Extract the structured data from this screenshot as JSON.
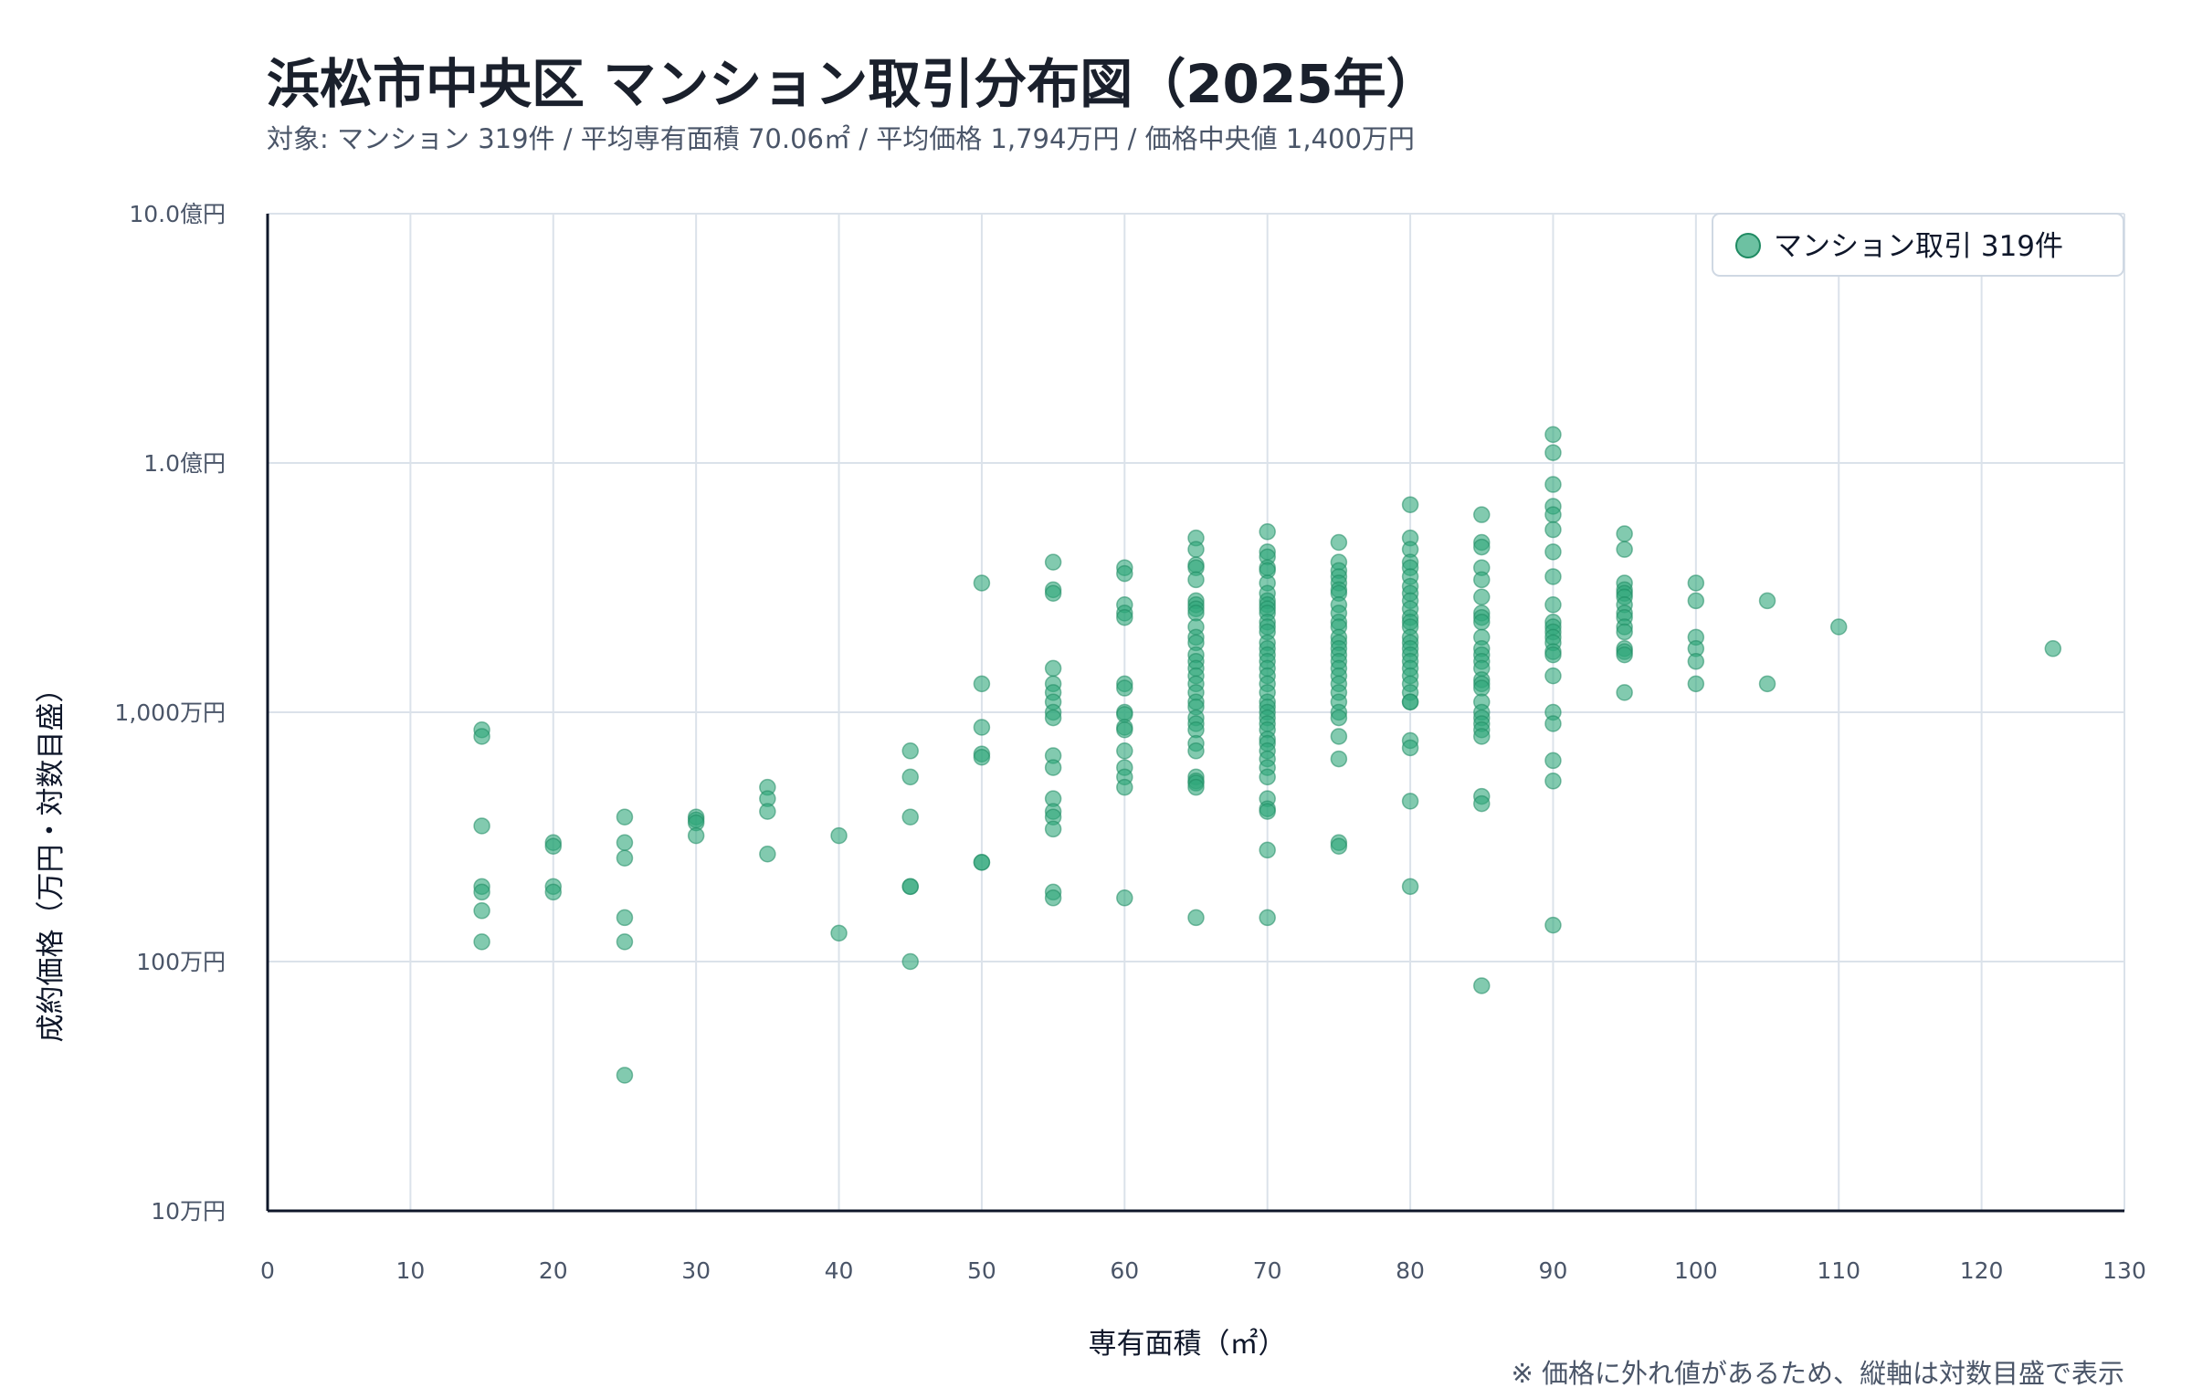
{
  "title": "浜松市中央区 マンション取引分布図（2025年）",
  "subtitle": "対象: マンション 319件 / 平均専有面積 70.06㎡ / 平均価格 1,794万円 / 価格中央値 1,400万円",
  "note": "※ 価格に外れ値があるため、縦軸は対数目盛で表示",
  "legend_label": "マンション取引 319件",
  "colors": {
    "marker": "#2fa67a",
    "marker_edge": "#1f8a62",
    "axis": "#0f172a",
    "grid": "#dbe2ea"
  },
  "chart_data": {
    "type": "scatter",
    "title": "浜松市中央区 マンション取引分布図（2025年）",
    "xlabel": "専有面積（㎡）",
    "ylabel": "成約価格（万円・対数目盛）",
    "xlim": [
      0,
      130
    ],
    "ylim": [
      10,
      100000
    ],
    "yscale": "log",
    "grid": true,
    "legend_position": "top-right",
    "x_ticks": [
      0,
      10,
      20,
      30,
      40,
      50,
      60,
      70,
      80,
      90,
      100,
      110,
      120,
      130
    ],
    "x_tick_labels": [
      "0",
      "10",
      "20",
      "30",
      "40",
      "50",
      "60",
      "70",
      "80",
      "90",
      "100",
      "110",
      "120",
      "130"
    ],
    "y_ticks": [
      10,
      100,
      1000,
      10000,
      100000
    ],
    "y_tick_labels": [
      "10万円",
      "100万円",
      "1,000万円",
      "1.0億円",
      "10.0億円"
    ],
    "series": [
      {
        "name": "マンション取引 319件",
        "points": [
          [
            15,
            850
          ],
          [
            15,
            800
          ],
          [
            15,
            350
          ],
          [
            15,
            200
          ],
          [
            15,
            190
          ],
          [
            15,
            160
          ],
          [
            15,
            120
          ],
          [
            20,
            300
          ],
          [
            20,
            290
          ],
          [
            20,
            200
          ],
          [
            20,
            190
          ],
          [
            25,
            380
          ],
          [
            25,
            300
          ],
          [
            25,
            260
          ],
          [
            25,
            150
          ],
          [
            25,
            120
          ],
          [
            25,
            35
          ],
          [
            30,
            380
          ],
          [
            30,
            370
          ],
          [
            30,
            360
          ],
          [
            30,
            320
          ],
          [
            35,
            500
          ],
          [
            35,
            450
          ],
          [
            35,
            400
          ],
          [
            35,
            270
          ],
          [
            40,
            320
          ],
          [
            40,
            130
          ],
          [
            45,
            700
          ],
          [
            45,
            550
          ],
          [
            45,
            380
          ],
          [
            45,
            200
          ],
          [
            45,
            200
          ],
          [
            45,
            100
          ],
          [
            50,
            3300
          ],
          [
            50,
            1300
          ],
          [
            50,
            870
          ],
          [
            50,
            680
          ],
          [
            50,
            660
          ],
          [
            50,
            250
          ],
          [
            50,
            250
          ],
          [
            55,
            4000
          ],
          [
            55,
            3100
          ],
          [
            55,
            3000
          ],
          [
            55,
            1500
          ],
          [
            55,
            1300
          ],
          [
            55,
            1200
          ],
          [
            55,
            1100
          ],
          [
            55,
            1000
          ],
          [
            55,
            950
          ],
          [
            55,
            670
          ],
          [
            55,
            600
          ],
          [
            55,
            450
          ],
          [
            55,
            400
          ],
          [
            55,
            380
          ],
          [
            55,
            340
          ],
          [
            55,
            190
          ],
          [
            55,
            180
          ],
          [
            60,
            3800
          ],
          [
            60,
            3600
          ],
          [
            60,
            2700
          ],
          [
            60,
            2500
          ],
          [
            60,
            2400
          ],
          [
            60,
            1300
          ],
          [
            60,
            1250
          ],
          [
            60,
            1000
          ],
          [
            60,
            980
          ],
          [
            60,
            870
          ],
          [
            60,
            850
          ],
          [
            60,
            700
          ],
          [
            60,
            600
          ],
          [
            60,
            550
          ],
          [
            60,
            500
          ],
          [
            60,
            180
          ],
          [
            65,
            5000
          ],
          [
            65,
            4500
          ],
          [
            65,
            3900
          ],
          [
            65,
            3800
          ],
          [
            65,
            3400
          ],
          [
            65,
            2800
          ],
          [
            65,
            2700
          ],
          [
            65,
            2600
          ],
          [
            65,
            2500
          ],
          [
            65,
            2200
          ],
          [
            65,
            2000
          ],
          [
            65,
            1900
          ],
          [
            65,
            1700
          ],
          [
            65,
            1600
          ],
          [
            65,
            1500
          ],
          [
            65,
            1400
          ],
          [
            65,
            1300
          ],
          [
            65,
            1200
          ],
          [
            65,
            1100
          ],
          [
            65,
            1050
          ],
          [
            65,
            950
          ],
          [
            65,
            900
          ],
          [
            65,
            850
          ],
          [
            65,
            750
          ],
          [
            65,
            700
          ],
          [
            65,
            550
          ],
          [
            65,
            530
          ],
          [
            65,
            520
          ],
          [
            65,
            500
          ],
          [
            65,
            150
          ],
          [
            70,
            5300
          ],
          [
            70,
            4400
          ],
          [
            70,
            4200
          ],
          [
            70,
            3800
          ],
          [
            70,
            3700
          ],
          [
            70,
            3300
          ],
          [
            70,
            3000
          ],
          [
            70,
            2800
          ],
          [
            70,
            2700
          ],
          [
            70,
            2600
          ],
          [
            70,
            2500
          ],
          [
            70,
            2300
          ],
          [
            70,
            2200
          ],
          [
            70,
            2100
          ],
          [
            70,
            1900
          ],
          [
            70,
            1800
          ],
          [
            70,
            1700
          ],
          [
            70,
            1600
          ],
          [
            70,
            1500
          ],
          [
            70,
            1400
          ],
          [
            70,
            1300
          ],
          [
            70,
            1200
          ],
          [
            70,
            1100
          ],
          [
            70,
            1050
          ],
          [
            70,
            1000
          ],
          [
            70,
            950
          ],
          [
            70,
            900
          ],
          [
            70,
            850
          ],
          [
            70,
            780
          ],
          [
            70,
            750
          ],
          [
            70,
            700
          ],
          [
            70,
            650
          ],
          [
            70,
            600
          ],
          [
            70,
            550
          ],
          [
            70,
            450
          ],
          [
            70,
            410
          ],
          [
            70,
            400
          ],
          [
            70,
            280
          ],
          [
            70,
            150
          ],
          [
            75,
            4800
          ],
          [
            75,
            4000
          ],
          [
            75,
            3700
          ],
          [
            75,
            3500
          ],
          [
            75,
            3300
          ],
          [
            75,
            3100
          ],
          [
            75,
            3000
          ],
          [
            75,
            2700
          ],
          [
            75,
            2500
          ],
          [
            75,
            2300
          ],
          [
            75,
            2200
          ],
          [
            75,
            2000
          ],
          [
            75,
            1900
          ],
          [
            75,
            1800
          ],
          [
            75,
            1700
          ],
          [
            75,
            1600
          ],
          [
            75,
            1500
          ],
          [
            75,
            1400
          ],
          [
            75,
            1300
          ],
          [
            75,
            1200
          ],
          [
            75,
            1100
          ],
          [
            75,
            1000
          ],
          [
            75,
            950
          ],
          [
            75,
            800
          ],
          [
            75,
            650
          ],
          [
            75,
            300
          ],
          [
            75,
            290
          ],
          [
            80,
            6800
          ],
          [
            80,
            5000
          ],
          [
            80,
            4500
          ],
          [
            80,
            4000
          ],
          [
            80,
            3800
          ],
          [
            80,
            3500
          ],
          [
            80,
            3200
          ],
          [
            80,
            3000
          ],
          [
            80,
            2800
          ],
          [
            80,
            2600
          ],
          [
            80,
            2400
          ],
          [
            80,
            2300
          ],
          [
            80,
            2200
          ],
          [
            80,
            2000
          ],
          [
            80,
            1900
          ],
          [
            80,
            1800
          ],
          [
            80,
            1700
          ],
          [
            80,
            1600
          ],
          [
            80,
            1500
          ],
          [
            80,
            1400
          ],
          [
            80,
            1300
          ],
          [
            80,
            1200
          ],
          [
            80,
            1100
          ],
          [
            80,
            1100
          ],
          [
            80,
            770
          ],
          [
            80,
            720
          ],
          [
            80,
            440
          ],
          [
            80,
            200
          ],
          [
            85,
            6200
          ],
          [
            85,
            4800
          ],
          [
            85,
            4600
          ],
          [
            85,
            3800
          ],
          [
            85,
            3400
          ],
          [
            85,
            2900
          ],
          [
            85,
            2500
          ],
          [
            85,
            2400
          ],
          [
            85,
            2300
          ],
          [
            85,
            2000
          ],
          [
            85,
            1800
          ],
          [
            85,
            1700
          ],
          [
            85,
            1600
          ],
          [
            85,
            1500
          ],
          [
            85,
            1350
          ],
          [
            85,
            1300
          ],
          [
            85,
            1250
          ],
          [
            85,
            1100
          ],
          [
            85,
            1000
          ],
          [
            85,
            950
          ],
          [
            85,
            900
          ],
          [
            85,
            850
          ],
          [
            85,
            800
          ],
          [
            85,
            460
          ],
          [
            85,
            430
          ],
          [
            85,
            80
          ],
          [
            90,
            13000
          ],
          [
            90,
            11000
          ],
          [
            90,
            8200
          ],
          [
            90,
            6700
          ],
          [
            90,
            6200
          ],
          [
            90,
            5400
          ],
          [
            90,
            4400
          ],
          [
            90,
            3500
          ],
          [
            90,
            2700
          ],
          [
            90,
            2300
          ],
          [
            90,
            2200
          ],
          [
            90,
            2100
          ],
          [
            90,
            2000
          ],
          [
            90,
            1900
          ],
          [
            90,
            1750
          ],
          [
            90,
            1700
          ],
          [
            90,
            1400
          ],
          [
            90,
            1000
          ],
          [
            90,
            900
          ],
          [
            90,
            640
          ],
          [
            90,
            530
          ],
          [
            90,
            140
          ],
          [
            95,
            5200
          ],
          [
            95,
            4500
          ],
          [
            95,
            3300
          ],
          [
            95,
            3100
          ],
          [
            95,
            3000
          ],
          [
            95,
            2900
          ],
          [
            95,
            2700
          ],
          [
            95,
            2500
          ],
          [
            95,
            2400
          ],
          [
            95,
            2200
          ],
          [
            95,
            2100
          ],
          [
            95,
            1800
          ],
          [
            95,
            1750
          ],
          [
            95,
            1700
          ],
          [
            95,
            1200
          ],
          [
            100,
            3300
          ],
          [
            100,
            2800
          ],
          [
            100,
            2000
          ],
          [
            100,
            1800
          ],
          [
            100,
            1600
          ],
          [
            100,
            1300
          ],
          [
            105,
            2800
          ],
          [
            105,
            1300
          ],
          [
            110,
            2200
          ],
          [
            125,
            1800
          ]
        ]
      }
    ]
  }
}
